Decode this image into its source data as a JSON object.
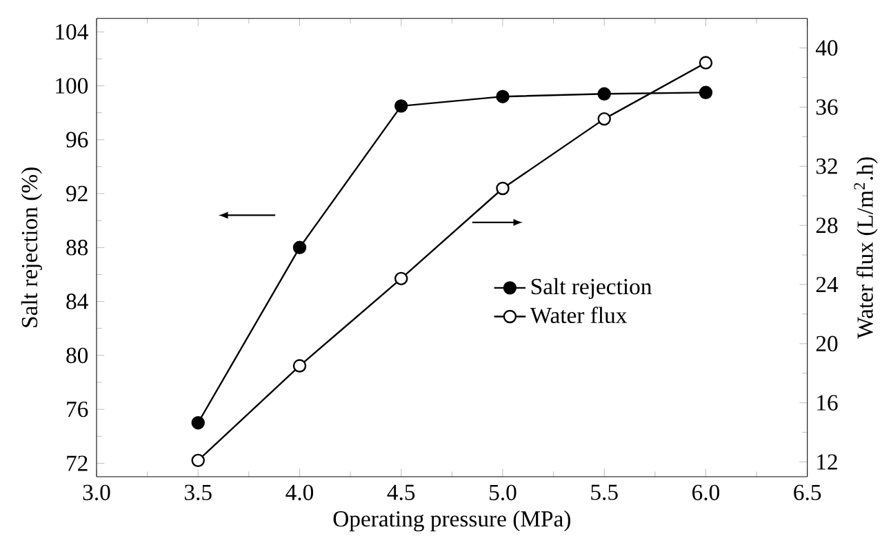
{
  "chart_data": {
    "type": "line",
    "xlabel": "Operating pressure (MPa)",
    "ylabel": "Salt rejection (%)",
    "y2label": "Water flux (L/m$^{2}$.h)",
    "x": [
      3.5,
      4.0,
      4.5,
      5.0,
      5.5,
      6.0
    ],
    "series": [
      {
        "name": "Salt rejection",
        "color": "#000000",
        "values": [
          75,
          88,
          98.5,
          99.2,
          99.4,
          99.5
        ]
      },
      {
        "name": "Water flux",
        "color": "#000000",
        "axis": "y2",
        "values": [
          12.1,
          18.5,
          24.4,
          30.5,
          35.2,
          39.0
        ]
      }
    ],
    "xlim": [
      3.0,
      6.5
    ],
    "xticks": [
      {
        "value": 3.0,
        "label": "3.0"
      },
      {
        "value": 3.5,
        "label": "3.5"
      },
      {
        "value": 4.0,
        "label": "4.0"
      },
      {
        "value": 4.5,
        "label": "4.5"
      },
      {
        "value": 5.0,
        "label": "5.0"
      },
      {
        "value": 5.5,
        "label": "5.5"
      },
      {
        "value": 6.0,
        "label": "6.0"
      },
      {
        "value": 6.5,
        "label": "6.5"
      }
    ],
    "ylim": [
      71,
      105
    ],
    "yticks": [
      72,
      76,
      80,
      84,
      88,
      92,
      96,
      100,
      104
    ],
    "y2lim": [
      11,
      42
    ],
    "y2ticks": [
      12,
      16,
      20,
      24,
      28,
      32,
      36,
      40
    ],
    "grid": false,
    "legend": "right",
    "marker": "circle",
    "line_style": "solid"
  }
}
